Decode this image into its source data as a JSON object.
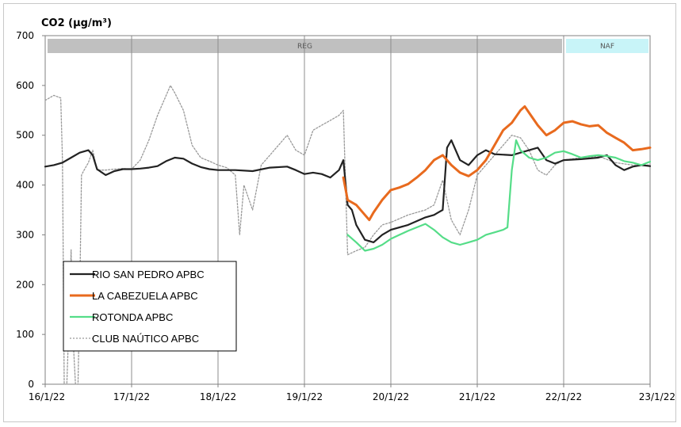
{
  "chart_data": {
    "type": "line",
    "title": "CO2 (µg/m³)",
    "ylim": [
      0,
      700
    ],
    "yticks": [
      "0",
      "100",
      "200",
      "300",
      "400",
      "500",
      "600",
      "700"
    ],
    "xticks": [
      "16/1/22",
      "17/1/22",
      "18/1/22",
      "19/1/22",
      "20/1/22",
      "21/1/22",
      "22/1/22",
      "23/1/22"
    ],
    "x_range_days": [
      0,
      7
    ],
    "bands": [
      {
        "label": "REG",
        "x_start": 0,
        "x_end": 6,
        "color": "#c0c0c0"
      },
      {
        "label": "NAF",
        "x_start": 6,
        "x_end": 7,
        "color": "#c8f4f8"
      }
    ],
    "grid": "vertical lines at each day",
    "legend_placement": "lower-left",
    "series": [
      {
        "name": "RIO SAN PEDRO APBC",
        "color": "#222222",
        "style": "solid",
        "points": [
          [
            0,
            437
          ],
          [
            0.1,
            440
          ],
          [
            0.2,
            445
          ],
          [
            0.3,
            455
          ],
          [
            0.4,
            465
          ],
          [
            0.5,
            470
          ],
          [
            0.55,
            460
          ],
          [
            0.6,
            432
          ],
          [
            0.7,
            420
          ],
          [
            0.8,
            428
          ],
          [
            0.9,
            432
          ],
          [
            1.0,
            432
          ],
          [
            1.1,
            433
          ],
          [
            1.2,
            435
          ],
          [
            1.3,
            438
          ],
          [
            1.4,
            448
          ],
          [
            1.5,
            455
          ],
          [
            1.6,
            453
          ],
          [
            1.7,
            443
          ],
          [
            1.8,
            436
          ],
          [
            1.9,
            432
          ],
          [
            2.0,
            430
          ],
          [
            2.2,
            430
          ],
          [
            2.4,
            428
          ],
          [
            2.6,
            435
          ],
          [
            2.8,
            437
          ],
          [
            2.9,
            430
          ],
          [
            3.0,
            422
          ],
          [
            3.1,
            425
          ],
          [
            3.2,
            422
          ],
          [
            3.3,
            415
          ],
          [
            3.4,
            430
          ],
          [
            3.45,
            450
          ],
          [
            3.5,
            360
          ],
          [
            3.55,
            350
          ],
          [
            3.6,
            320
          ],
          [
            3.7,
            290
          ],
          [
            3.8,
            285
          ],
          [
            3.9,
            300
          ],
          [
            4.0,
            310
          ],
          [
            4.2,
            320
          ],
          [
            4.4,
            335
          ],
          [
            4.5,
            340
          ],
          [
            4.55,
            345
          ],
          [
            4.6,
            350
          ],
          [
            4.65,
            475
          ],
          [
            4.7,
            490
          ],
          [
            4.8,
            450
          ],
          [
            4.9,
            440
          ],
          [
            5.0,
            460
          ],
          [
            5.1,
            470
          ],
          [
            5.2,
            462
          ],
          [
            5.4,
            460
          ],
          [
            5.5,
            465
          ],
          [
            5.6,
            470
          ],
          [
            5.7,
            475
          ],
          [
            5.8,
            450
          ],
          [
            5.9,
            443
          ],
          [
            6.0,
            450
          ],
          [
            6.2,
            452
          ],
          [
            6.4,
            455
          ],
          [
            6.5,
            460
          ],
          [
            6.6,
            440
          ],
          [
            6.7,
            430
          ],
          [
            6.8,
            437
          ],
          [
            6.9,
            440
          ],
          [
            7.0,
            438
          ]
        ]
      },
      {
        "name": "LA CABEZUELA APBC",
        "color": "#e86a1e",
        "style": "solid",
        "points": [
          [
            3.45,
            415
          ],
          [
            3.5,
            370
          ],
          [
            3.6,
            360
          ],
          [
            3.7,
            340
          ],
          [
            3.75,
            330
          ],
          [
            3.8,
            345
          ],
          [
            3.9,
            370
          ],
          [
            4.0,
            390
          ],
          [
            4.1,
            395
          ],
          [
            4.2,
            402
          ],
          [
            4.3,
            415
          ],
          [
            4.4,
            430
          ],
          [
            4.5,
            450
          ],
          [
            4.6,
            460
          ],
          [
            4.7,
            440
          ],
          [
            4.8,
            425
          ],
          [
            4.9,
            418
          ],
          [
            5.0,
            430
          ],
          [
            5.1,
            450
          ],
          [
            5.2,
            480
          ],
          [
            5.3,
            510
          ],
          [
            5.4,
            525
          ],
          [
            5.5,
            550
          ],
          [
            5.55,
            558
          ],
          [
            5.6,
            545
          ],
          [
            5.7,
            520
          ],
          [
            5.8,
            500
          ],
          [
            5.9,
            510
          ],
          [
            6.0,
            525
          ],
          [
            6.1,
            528
          ],
          [
            6.2,
            522
          ],
          [
            6.3,
            518
          ],
          [
            6.4,
            520
          ],
          [
            6.5,
            505
          ],
          [
            6.6,
            495
          ],
          [
            6.7,
            485
          ],
          [
            6.8,
            470
          ],
          [
            6.9,
            472
          ],
          [
            7.0,
            475
          ]
        ]
      },
      {
        "name": "ROTONDA APBC",
        "color": "#55dd88",
        "style": "solid",
        "points": [
          [
            3.5,
            300
          ],
          [
            3.6,
            285
          ],
          [
            3.7,
            268
          ],
          [
            3.8,
            272
          ],
          [
            3.9,
            280
          ],
          [
            4.0,
            292
          ],
          [
            4.1,
            300
          ],
          [
            4.2,
            308
          ],
          [
            4.3,
            315
          ],
          [
            4.4,
            322
          ],
          [
            4.5,
            310
          ],
          [
            4.6,
            295
          ],
          [
            4.7,
            285
          ],
          [
            4.8,
            280
          ],
          [
            4.9,
            285
          ],
          [
            5.0,
            290
          ],
          [
            5.1,
            300
          ],
          [
            5.2,
            305
          ],
          [
            5.3,
            310
          ],
          [
            5.35,
            315
          ],
          [
            5.4,
            430
          ],
          [
            5.45,
            490
          ],
          [
            5.5,
            470
          ],
          [
            5.6,
            455
          ],
          [
            5.7,
            450
          ],
          [
            5.8,
            455
          ],
          [
            5.9,
            465
          ],
          [
            6.0,
            468
          ],
          [
            6.1,
            462
          ],
          [
            6.2,
            455
          ],
          [
            6.3,
            458
          ],
          [
            6.4,
            460
          ],
          [
            6.5,
            458
          ],
          [
            6.6,
            455
          ],
          [
            6.7,
            448
          ],
          [
            6.8,
            445
          ],
          [
            6.9,
            440
          ],
          [
            7.0,
            447
          ]
        ]
      },
      {
        "name": "CLUB NAÚTICO APBC",
        "color": "#999999",
        "style": "dotted",
        "points": [
          [
            0,
            570
          ],
          [
            0.1,
            580
          ],
          [
            0.18,
            575
          ],
          [
            0.2,
            450
          ],
          [
            0.22,
            0
          ],
          [
            0.25,
            0
          ],
          [
            0.28,
            150
          ],
          [
            0.3,
            270
          ],
          [
            0.32,
            100
          ],
          [
            0.35,
            0
          ],
          [
            0.38,
            0
          ],
          [
            0.4,
            180
          ],
          [
            0.42,
            420
          ],
          [
            0.45,
            430
          ],
          [
            0.5,
            445
          ],
          [
            0.55,
            470
          ],
          [
            0.6,
            430
          ],
          [
            0.7,
            430
          ],
          [
            0.8,
            432
          ],
          [
            0.9,
            433
          ],
          [
            1.0,
            432
          ],
          [
            1.1,
            450
          ],
          [
            1.2,
            490
          ],
          [
            1.3,
            540
          ],
          [
            1.4,
            580
          ],
          [
            1.45,
            600
          ],
          [
            1.5,
            585
          ],
          [
            1.6,
            550
          ],
          [
            1.7,
            480
          ],
          [
            1.8,
            455
          ],
          [
            1.9,
            448
          ],
          [
            2.0,
            440
          ],
          [
            2.1,
            435
          ],
          [
            2.2,
            420
          ],
          [
            2.25,
            300
          ],
          [
            2.3,
            400
          ],
          [
            2.4,
            350
          ],
          [
            2.5,
            440
          ],
          [
            2.6,
            460
          ],
          [
            2.7,
            480
          ],
          [
            2.8,
            500
          ],
          [
            2.9,
            470
          ],
          [
            3.0,
            460
          ],
          [
            3.1,
            510
          ],
          [
            3.2,
            520
          ],
          [
            3.3,
            530
          ],
          [
            3.4,
            540
          ],
          [
            3.45,
            550
          ],
          [
            3.5,
            260
          ],
          [
            3.6,
            268
          ],
          [
            3.7,
            275
          ],
          [
            3.8,
            300
          ],
          [
            3.9,
            320
          ],
          [
            4.0,
            325
          ],
          [
            4.2,
            340
          ],
          [
            4.4,
            350
          ],
          [
            4.5,
            360
          ],
          [
            4.6,
            410
          ],
          [
            4.7,
            330
          ],
          [
            4.8,
            300
          ],
          [
            4.9,
            350
          ],
          [
            5.0,
            420
          ],
          [
            5.1,
            440
          ],
          [
            5.2,
            460
          ],
          [
            5.3,
            480
          ],
          [
            5.4,
            500
          ],
          [
            5.5,
            495
          ],
          [
            5.6,
            470
          ],
          [
            5.7,
            430
          ],
          [
            5.8,
            420
          ],
          [
            5.9,
            440
          ],
          [
            6.0,
            450
          ],
          [
            6.2,
            455
          ],
          [
            6.4,
            458
          ],
          [
            6.6,
            445
          ],
          [
            6.8,
            440
          ],
          [
            7.0,
            440
          ]
        ]
      }
    ]
  }
}
